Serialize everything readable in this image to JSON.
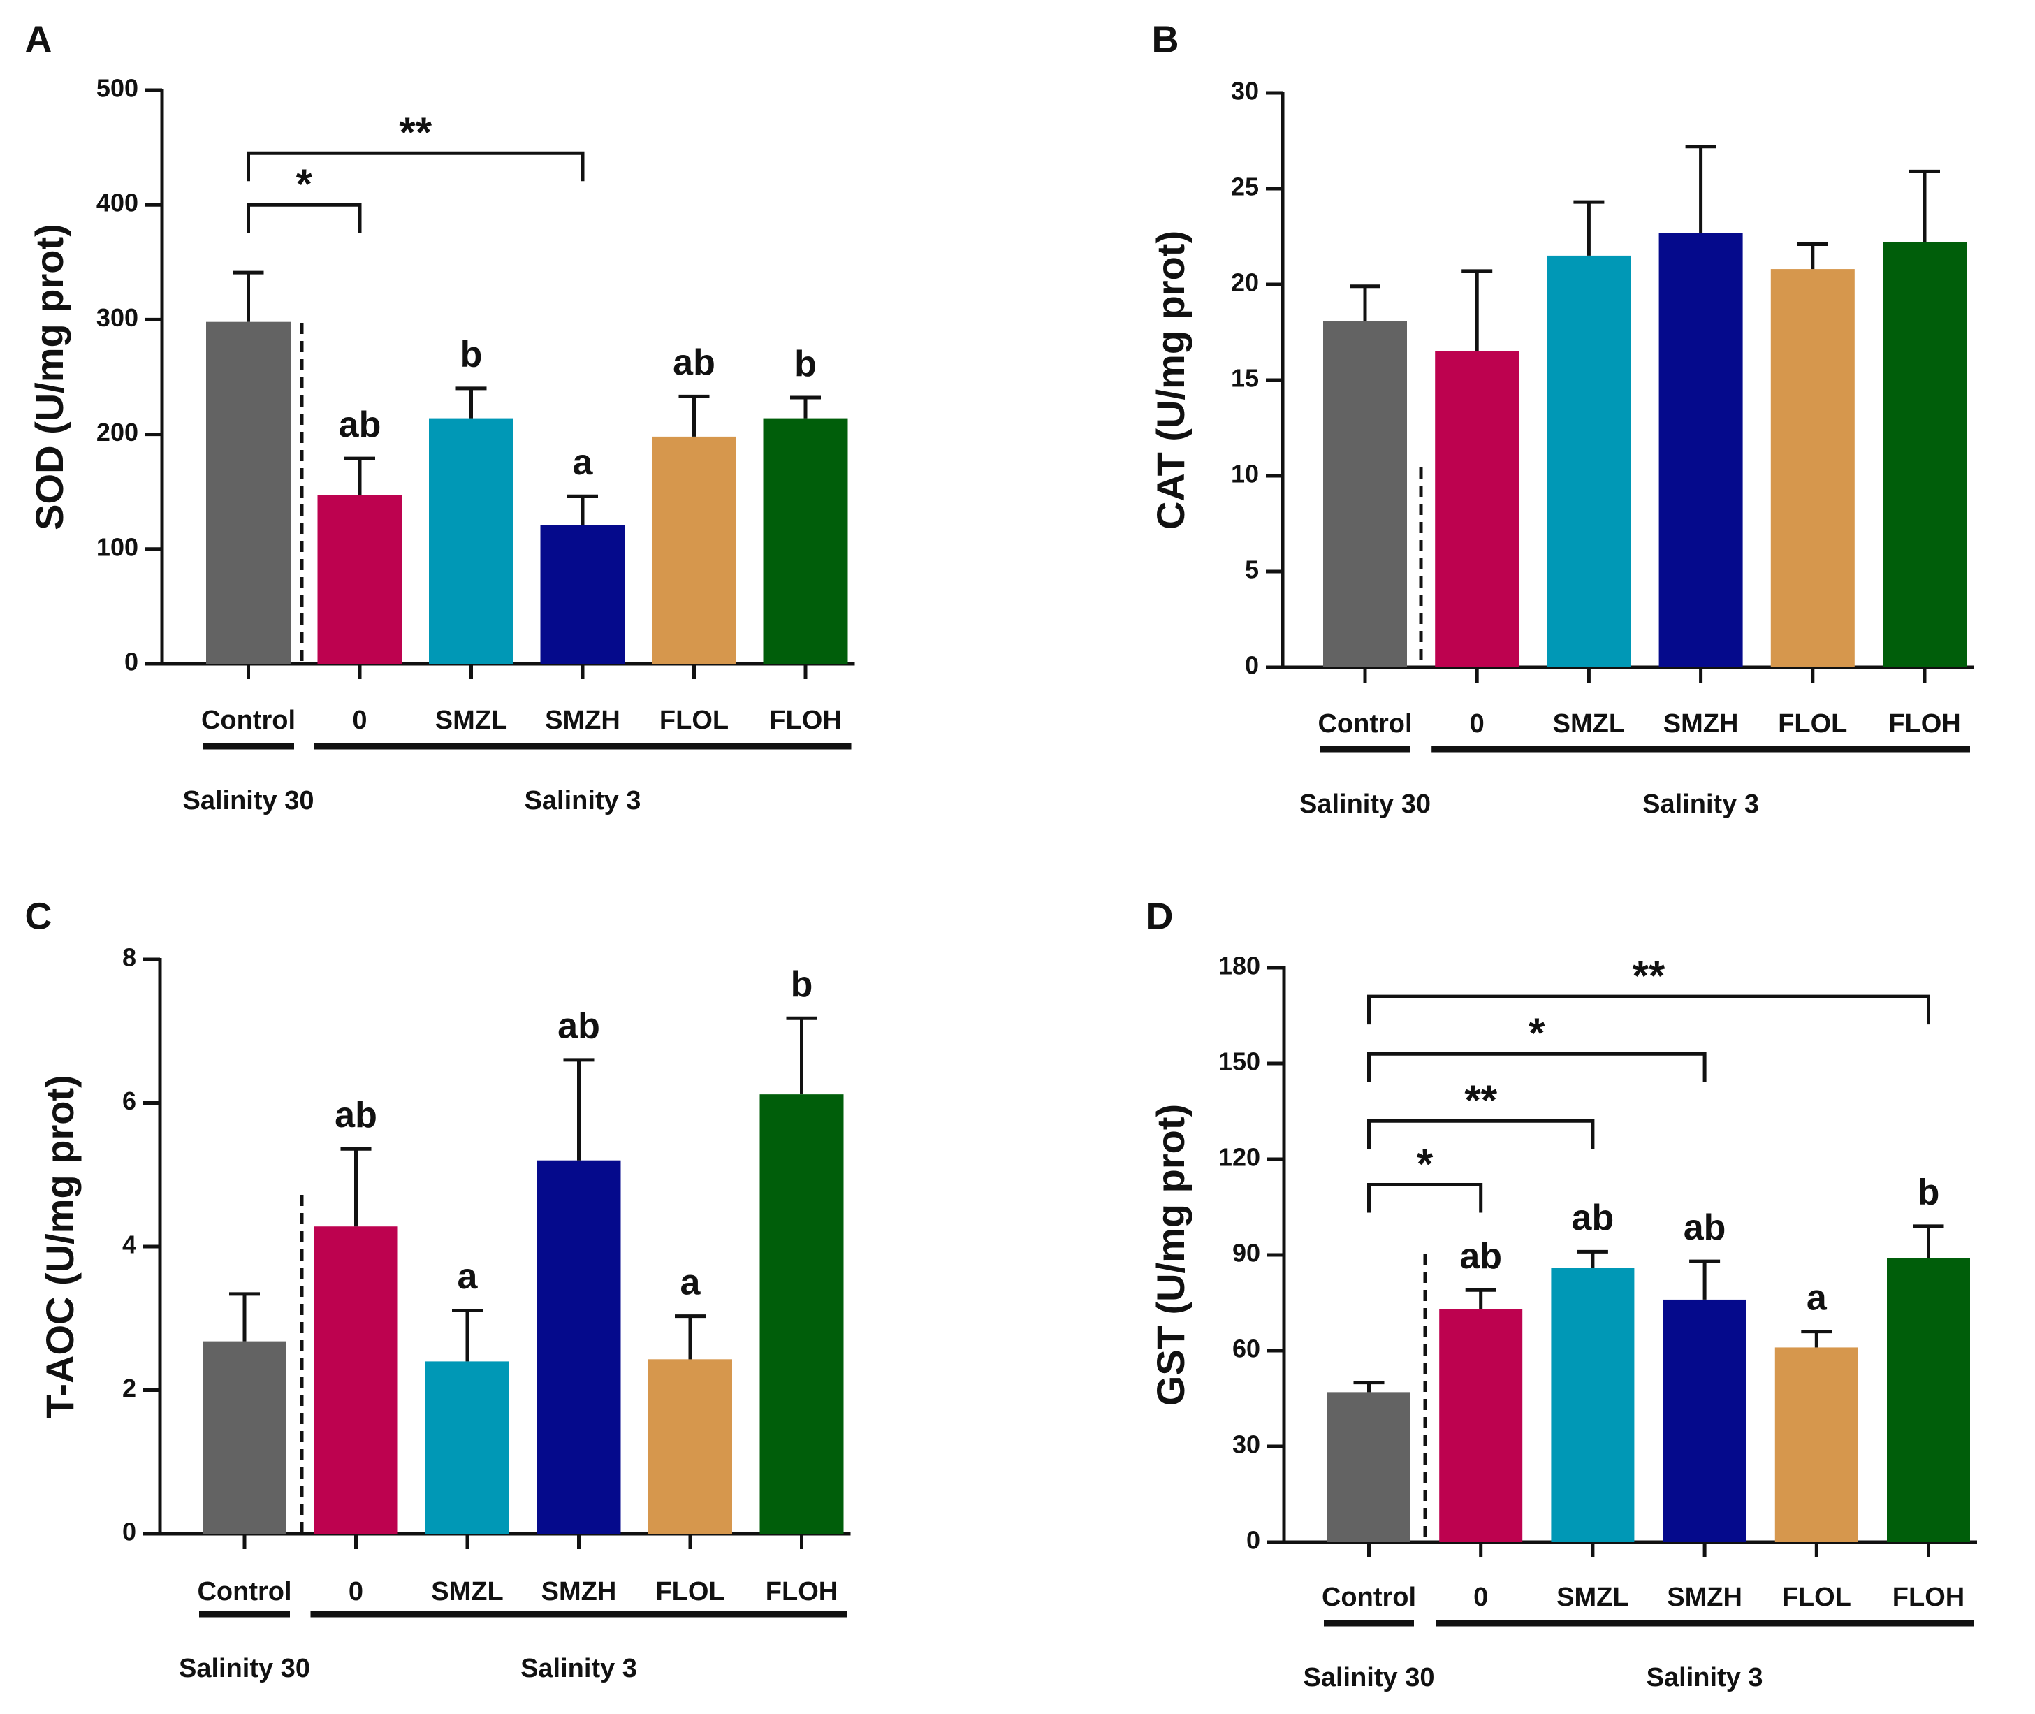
{
  "chart_data": [
    {
      "panel": "A",
      "type": "bar",
      "ylabel": "SOD (U/mg prot)",
      "ylim": [
        0,
        500
      ],
      "yticks": [
        0,
        100,
        200,
        300,
        400,
        500
      ],
      "categories": [
        "Control",
        "0",
        "SMZL",
        "SMZH",
        "FLOL",
        "FLOH"
      ],
      "values": [
        298,
        147,
        214,
        121,
        198,
        214
      ],
      "errors": [
        43,
        32,
        26,
        25,
        35,
        18
      ],
      "colors": [
        "#636363",
        "#bd024f",
        "#0098b6",
        "#050a8c",
        "#d6974d",
        "#005e0a"
      ],
      "letters": [
        "",
        "ab",
        "b",
        "a",
        "ab",
        "b"
      ],
      "brackets": [
        {
          "from": 0,
          "to": 1,
          "label": "*",
          "y": 400
        },
        {
          "from": 0,
          "to": 3,
          "label": "**",
          "y": 445
        }
      ],
      "groups": [
        {
          "label": "Salinity 30",
          "from": 0,
          "to": 0
        },
        {
          "label": "Salinity 3",
          "from": 1,
          "to": 5
        }
      ]
    },
    {
      "panel": "B",
      "type": "bar",
      "ylabel": "CAT (U/mg prot)",
      "ylim": [
        0,
        30
      ],
      "yticks": [
        0,
        5,
        10,
        15,
        20,
        25,
        30
      ],
      "categories": [
        "Control",
        "0",
        "SMZL",
        "SMZH",
        "FLOL",
        "FLOH"
      ],
      "values": [
        18.1,
        16.5,
        21.5,
        22.7,
        20.8,
        22.2
      ],
      "errors": [
        1.8,
        4.2,
        2.8,
        4.5,
        1.3,
        3.7
      ],
      "colors": [
        "#636363",
        "#bd024f",
        "#0098b6",
        "#050a8c",
        "#d6974d",
        "#005e0a"
      ],
      "letters": [
        "",
        "",
        "",
        "",
        "",
        ""
      ],
      "brackets": [],
      "groups": [
        {
          "label": "Salinity 30",
          "from": 0,
          "to": 0
        },
        {
          "label": "Salinity 3",
          "from": 1,
          "to": 5
        }
      ]
    },
    {
      "panel": "C",
      "type": "bar",
      "ylabel": "T-AOC  (U/mg prot)",
      "ylim": [
        0,
        8
      ],
      "yticks": [
        0,
        2,
        4,
        6,
        8
      ],
      "categories": [
        "Control",
        "0",
        "SMZL",
        "SMZH",
        "FLOL",
        "FLOH"
      ],
      "values": [
        2.68,
        4.28,
        2.4,
        5.2,
        2.43,
        6.12
      ],
      "errors": [
        0.66,
        1.08,
        0.71,
        1.4,
        0.6,
        1.06
      ],
      "colors": [
        "#636363",
        "#bd024f",
        "#0098b6",
        "#050a8c",
        "#d6974d",
        "#005e0a"
      ],
      "letters": [
        "",
        "ab",
        "a",
        "ab",
        "a",
        "b"
      ],
      "brackets": [],
      "groups": [
        {
          "label": "Salinity 30",
          "from": 0,
          "to": 0
        },
        {
          "label": "Salinity 3",
          "from": 1,
          "to": 5
        }
      ]
    },
    {
      "panel": "D",
      "type": "bar",
      "ylabel": "GST (U/mg prot)",
      "ylim": [
        0,
        180
      ],
      "yticks": [
        0,
        30,
        60,
        90,
        120,
        150,
        180
      ],
      "categories": [
        "Control",
        "0",
        "SMZL",
        "SMZH",
        "FLOL",
        "FLOH"
      ],
      "values": [
        47,
        73,
        86,
        76,
        61,
        89
      ],
      "errors": [
        3,
        6,
        5,
        12,
        5,
        10
      ],
      "colors": [
        "#636363",
        "#bd024f",
        "#0098b6",
        "#050a8c",
        "#d6974d",
        "#005e0a"
      ],
      "letters": [
        "",
        "ab",
        "ab",
        "ab",
        "a",
        "b"
      ],
      "brackets": [
        {
          "from": 0,
          "to": 1,
          "label": "*",
          "y": 112
        },
        {
          "from": 0,
          "to": 2,
          "label": "**",
          "y": 132
        },
        {
          "from": 0,
          "to": 3,
          "label": "*",
          "y": 153
        },
        {
          "from": 0,
          "to": 5,
          "label": "**",
          "y": 171
        }
      ],
      "groups": [
        {
          "label": "Salinity 30",
          "from": 0,
          "to": 0
        },
        {
          "label": "Salinity 3",
          "from": 1,
          "to": 5
        }
      ]
    }
  ]
}
